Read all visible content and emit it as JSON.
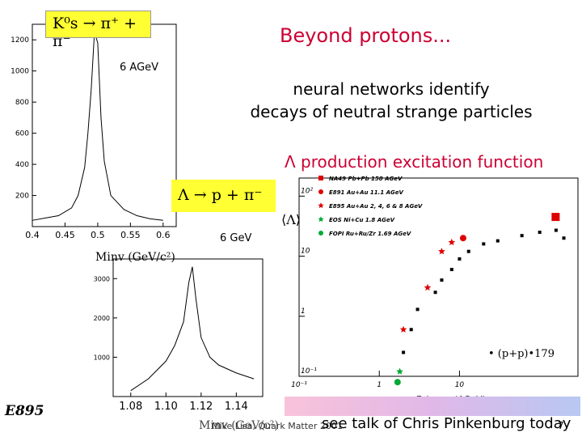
{
  "slide": {
    "title": "Beyond protons...",
    "subtitle_line1": "neural networks identify",
    "subtitle_line2": "decays of neutral strange particles",
    "lambda_title": "Λ production excitation function",
    "experiment": "E895",
    "footer_speaker": "Mike Lisa, Quark Matter 2001",
    "footer_talk": "see talk of Chris Pinkenburg today",
    "footer_page": "7"
  },
  "colors": {
    "title": "#cc0033",
    "highlight_box": "#ffff33",
    "marker_red": "#dd0000",
    "marker_green": "#00aa33",
    "marker_black": "#000000"
  },
  "k0_panel": {
    "reaction": "K⁰s → π⁺ + π⁻",
    "energy": "6 AGeV",
    "xaxis_label": "Minv (GeV/c²)",
    "yticks": [
      "1200",
      "1000",
      "800",
      "600",
      "400",
      "200"
    ],
    "xticks": [
      "0.4",
      "0.45",
      "0.5",
      "0.55",
      "0.6"
    ]
  },
  "lambda_panel": {
    "reaction": "Λ → p + π⁻",
    "energy": "6 GeV",
    "xaxis_label": "Minv (GeV/c²)",
    "yticks": [
      "3000",
      "2000",
      "1000"
    ],
    "xticks": [
      "1.08",
      "1.10",
      "1.12",
      "1.14"
    ]
  },
  "excitation_panel": {
    "ylabel": "⟨Λ⟩",
    "xlabel": "E_beam (AGeV)",
    "pp_label": "• (p+p)•179",
    "yticks": [
      "10²",
      "10",
      "1",
      "10⁻¹"
    ],
    "xticks": [
      "10⁻¹",
      "1",
      "10"
    ],
    "legend": [
      {
        "marker": "square",
        "color": "#dd0000",
        "text": "NA49 Pb+Pb 158 AGeV"
      },
      {
        "marker": "circle",
        "color": "#dd0000",
        "text": "E891 Au+Au 11.1 AGeV"
      },
      {
        "marker": "star",
        "color": "#dd0000",
        "text": "E895 Au+Au 2, 4, 6 & 8 AGeV"
      },
      {
        "marker": "star",
        "color": "#00aa33",
        "text": "EOS Ni+Cu 1.8 AGeV"
      },
      {
        "marker": "circle",
        "color": "#00aa33",
        "text": "FOPI Ru+Ru/Zr 1.69 AGeV"
      }
    ]
  },
  "chart_data": [
    {
      "type": "histogram",
      "title": "K⁰s → π⁺ + π⁻",
      "xlabel": "Minv (GeV/c²)",
      "xlim": [
        0.4,
        0.62
      ],
      "ylim": [
        0,
        1300
      ],
      "x": [
        0.4,
        0.42,
        0.44,
        0.46,
        0.47,
        0.48,
        0.485,
        0.49,
        0.495,
        0.5,
        0.505,
        0.51,
        0.52,
        0.54,
        0.56,
        0.58,
        0.6
      ],
      "values": [
        40,
        55,
        70,
        120,
        200,
        380,
        600,
        880,
        1250,
        1180,
        700,
        420,
        200,
        110,
        70,
        50,
        40
      ]
    },
    {
      "type": "histogram",
      "title": "Λ → p + π⁻",
      "xlabel": "Minv (GeV/c²)",
      "xlim": [
        1.07,
        1.155
      ],
      "ylim": [
        0,
        3500
      ],
      "x": [
        1.08,
        1.09,
        1.1,
        1.105,
        1.11,
        1.113,
        1.115,
        1.117,
        1.12,
        1.125,
        1.13,
        1.14,
        1.15
      ],
      "values": [
        150,
        450,
        900,
        1300,
        1900,
        2900,
        3300,
        2500,
        1500,
        1000,
        800,
        600,
        450
      ]
    },
    {
      "type": "scatter",
      "title": "Λ production excitation function",
      "ylabel": "⟨Λ⟩",
      "xlabel": "E_beam (AGeV)",
      "xscale": "log",
      "yscale": "log",
      "xlim": [
        0.1,
        300
      ],
      "ylim": [
        0.1,
        200
      ],
      "series": [
        {
          "name": "NA49 Pb+Pb 158 AGeV",
          "x": [
            158
          ],
          "y": [
            45
          ]
        },
        {
          "name": "E891 Au+Au 11.1 AGeV",
          "x": [
            11.1
          ],
          "y": [
            20
          ]
        },
        {
          "name": "E895 Au+Au 2, 4, 6 & 8 AGeV",
          "x": [
            2,
            4,
            6,
            8
          ],
          "y": [
            0.6,
            3,
            12,
            17
          ]
        },
        {
          "name": "EOS Ni+Cu 1.8 AGeV",
          "x": [
            1.8
          ],
          "y": [
            0.12
          ]
        },
        {
          "name": "FOPI Ru+Ru/Zr 1.69 AGeV",
          "x": [
            1.69
          ],
          "y": [
            0.08
          ]
        },
        {
          "name": "(p+p)•179",
          "x": [
            2,
            2.5,
            3,
            5,
            6,
            8,
            10,
            13,
            20,
            30,
            60,
            100,
            160,
            200
          ],
          "y": [
            0.25,
            0.6,
            1.3,
            2.5,
            4,
            6,
            9,
            12,
            16,
            18,
            22,
            25,
            27,
            20
          ]
        }
      ]
    }
  ]
}
